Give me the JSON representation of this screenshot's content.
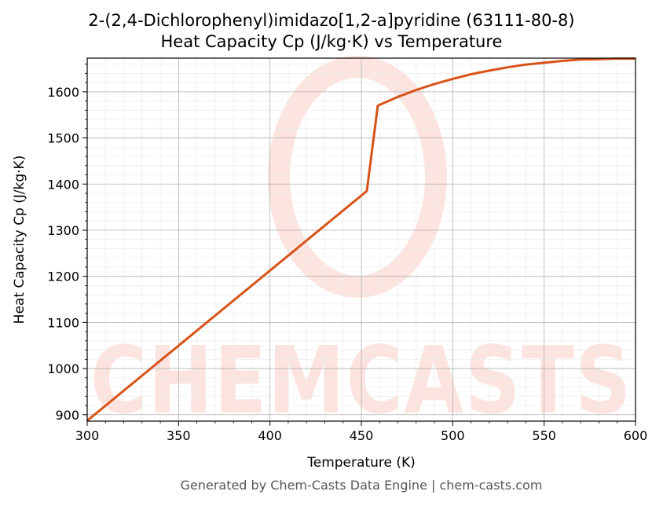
{
  "chart_data": {
    "type": "line",
    "title": "2-(2,4-Dichlorophenyl)imidazo[1,2-a]pyridine (63111-80-8)",
    "subtitle": "Heat Capacity Cp (J/kg·K) vs Temperature",
    "xlabel": "Temperature (K)",
    "ylabel": "Heat Capacity Cp (J/kg·K)",
    "xlim": [
      300,
      600
    ],
    "ylim": [
      886,
      1673
    ],
    "x_ticks": [
      300,
      350,
      400,
      450,
      500,
      550,
      600
    ],
    "y_ticks": [
      900,
      1000,
      1100,
      1200,
      1300,
      1400,
      1500,
      1600
    ],
    "grid": true,
    "series": [
      {
        "color": "#d95319",
        "x": [
          300,
          453,
          459,
          470,
          480,
          490,
          500,
          510,
          520,
          530,
          540,
          550,
          560,
          570,
          580,
          590,
          600
        ],
        "y": [
          887,
          1385,
          1570,
          1589,
          1604,
          1617,
          1628,
          1638,
          1646,
          1653,
          1659,
          1663,
          1667,
          1670,
          1671,
          1672,
          1672
        ]
      }
    ],
    "watermark": "CHEMCASTS"
  },
  "footer": "Generated by Chem-Casts Data Engine | chem-casts.com"
}
